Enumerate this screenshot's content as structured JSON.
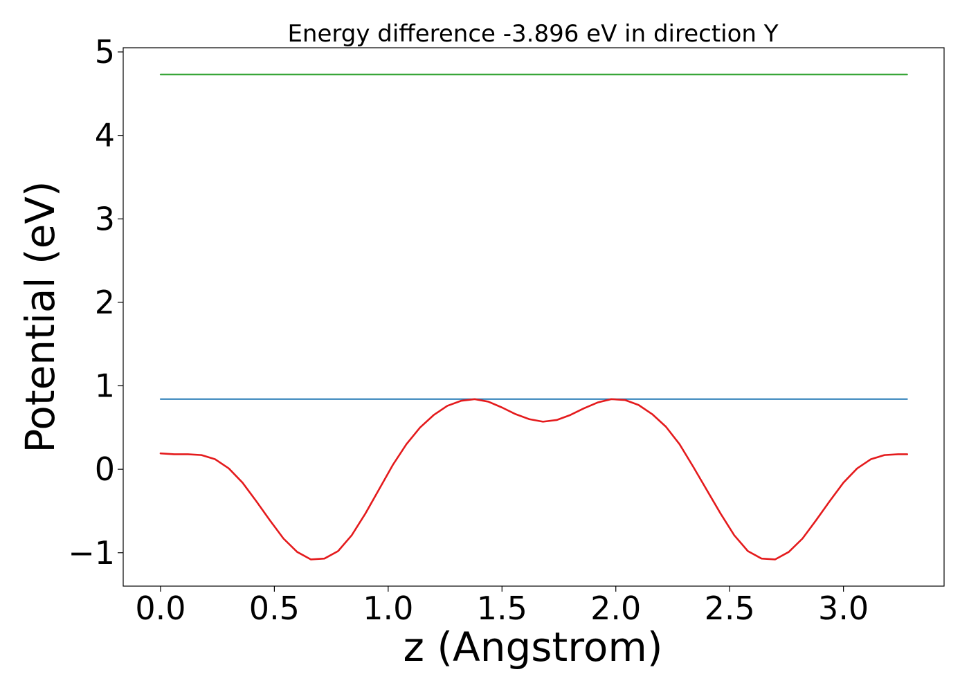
{
  "chart_data": {
    "type": "line",
    "title": "Energy difference -3.896 eV in direction Y",
    "xlabel": "z (Angstrom)",
    "ylabel": "Potential (eV)",
    "xlim": [
      -0.164,
      3.442
    ],
    "ylim": [
      -1.4,
      5.05
    ],
    "x_ticks": [
      0.0,
      0.5,
      1.0,
      1.5,
      2.0,
      2.5,
      3.0
    ],
    "x_tick_labels": [
      "0.0",
      "0.5",
      "1.0",
      "1.5",
      "2.0",
      "2.5",
      "3.0"
    ],
    "y_ticks": [
      -1,
      0,
      1,
      2,
      3,
      4,
      5
    ],
    "y_tick_labels": [
      "−1",
      "0",
      "1",
      "2",
      "3",
      "4",
      "5"
    ],
    "grid": false,
    "series": [
      {
        "color": "#2ca02c",
        "x": [
          0.0,
          3.28
        ],
        "y": [
          4.73,
          4.73
        ]
      },
      {
        "color": "#1f77b4",
        "x": [
          0.0,
          3.28
        ],
        "y": [
          0.84,
          0.84
        ]
      },
      {
        "color": "#e41a1c",
        "x": [
          0.0,
          0.06,
          0.12,
          0.18,
          0.24,
          0.3,
          0.36,
          0.42,
          0.48,
          0.54,
          0.6,
          0.66,
          0.72,
          0.78,
          0.84,
          0.9,
          0.96,
          1.02,
          1.08,
          1.14,
          1.2,
          1.26,
          1.32,
          1.38,
          1.44,
          1.5,
          1.56,
          1.62,
          1.68,
          1.74,
          1.8,
          1.86,
          1.92,
          1.98,
          2.04,
          2.1,
          2.16,
          2.22,
          2.28,
          2.34,
          2.4,
          2.46,
          2.52,
          2.58,
          2.64,
          2.7,
          2.76,
          2.82,
          2.88,
          2.94,
          3.0,
          3.06,
          3.12,
          3.18,
          3.24,
          3.28
        ],
        "y": [
          0.19,
          0.18,
          0.18,
          0.17,
          0.12,
          0.01,
          -0.16,
          -0.38,
          -0.61,
          -0.83,
          -0.99,
          -1.08,
          -1.07,
          -0.98,
          -0.79,
          -0.53,
          -0.24,
          0.05,
          0.3,
          0.5,
          0.65,
          0.76,
          0.82,
          0.84,
          0.81,
          0.74,
          0.66,
          0.6,
          0.57,
          0.59,
          0.65,
          0.73,
          0.8,
          0.84,
          0.83,
          0.77,
          0.66,
          0.51,
          0.3,
          0.03,
          -0.25,
          -0.53,
          -0.79,
          -0.98,
          -1.07,
          -1.08,
          -0.99,
          -0.83,
          -0.61,
          -0.38,
          -0.16,
          0.01,
          0.12,
          0.17,
          0.18,
          0.18
        ]
      }
    ]
  }
}
